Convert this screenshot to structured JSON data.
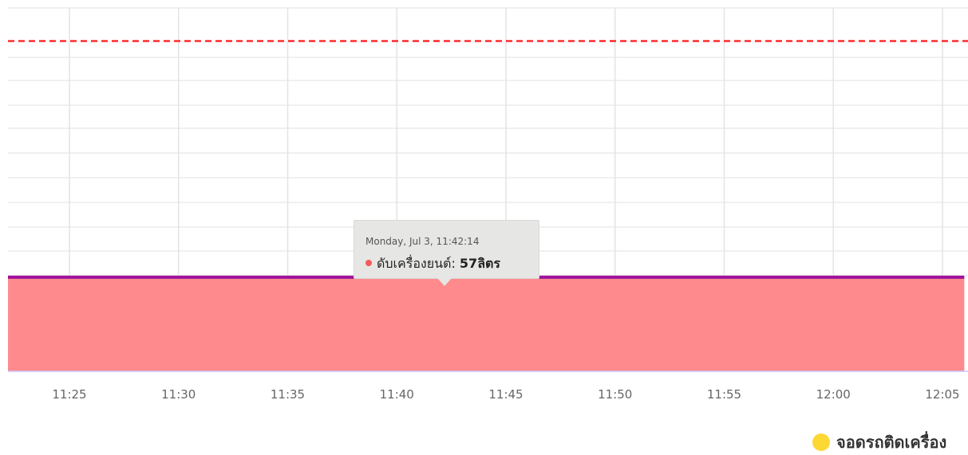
{
  "chart_data": {
    "type": "area",
    "x_ticks": [
      "11:25",
      "11:30",
      "11:35",
      "11:40",
      "11:45",
      "11:50",
      "11:55",
      "12:00",
      "12:05"
    ],
    "series": [
      {
        "name": "ดับเครื่องยนต์",
        "x": [
          "11:22",
          "12:06"
        ],
        "values": [
          57,
          57
        ],
        "fill_color": "#ff8a8d",
        "line_color": "#a0129b"
      }
    ],
    "reference_line": {
      "value": 200,
      "color": "#ff2b2b",
      "style": "dashed"
    },
    "ylim": [
      0,
      220
    ],
    "grid": true,
    "legend": {
      "position": "bottom-right",
      "items": [
        {
          "label": "จอดรถติดเครื่อง",
          "color": "#fdd835"
        }
      ]
    },
    "tooltip": {
      "date": "Monday, Jul 3, 11:42:14",
      "series_label": "ดับเครื่องยนต์:",
      "value": "57ลิตร",
      "dot_color": "#f45b5b",
      "x": "11:42:14"
    }
  }
}
